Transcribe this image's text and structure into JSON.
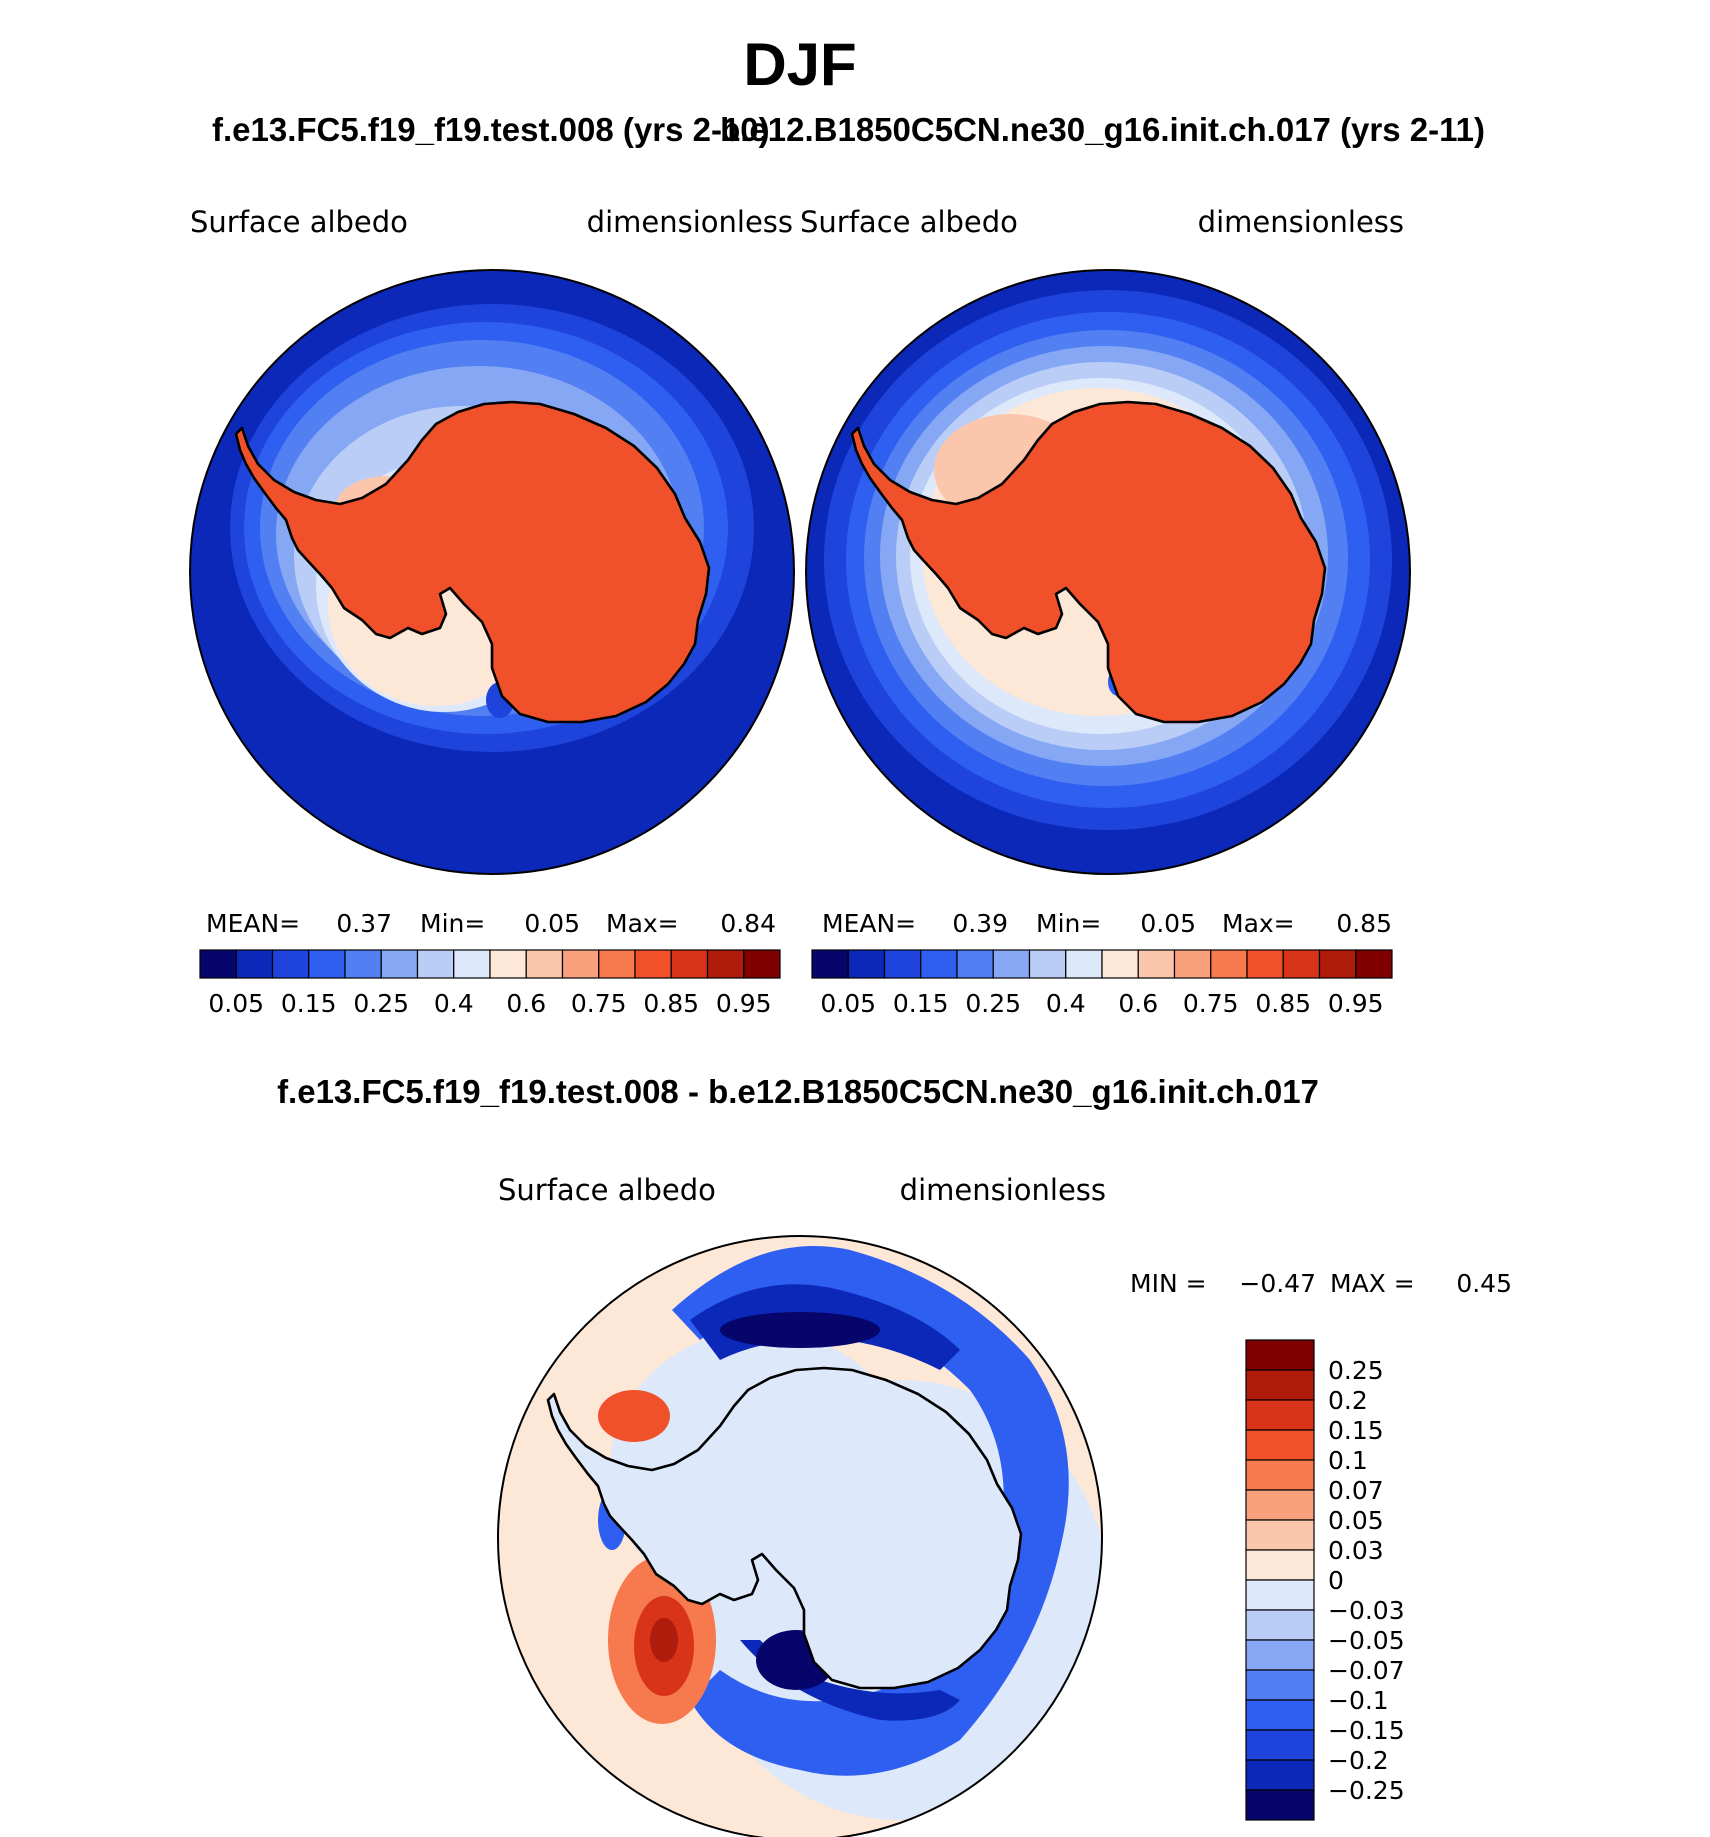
{
  "page": {
    "season": "DJF",
    "case1_title": "f.e13.FC5.f19_f19.test.008 (yrs 2-10)",
    "case2_title": "b.e12.B1850C5CN.ne30_g16.init.ch.017 (yrs 2-11)",
    "diff_title": "f.e13.FC5.f19_f19.test.008 - b.e12.B1850C5CN.ne30_g16.init.ch.017"
  },
  "chart_data": [
    {
      "type": "heatmap",
      "projection": "south-polar-stereographic",
      "title": "f.e13.FC5.f19_f19.test.008 (yrs 2-10)",
      "left_label": "Surface albedo",
      "right_label": "dimensionless",
      "stats": {
        "mean_label": "MEAN=",
        "mean": "0.37",
        "min_label": "Min=",
        "min": "0.05",
        "max_label": "Max=",
        "max": "0.84"
      },
      "colorbar": {
        "orientation": "horizontal",
        "levels": [
          "0.05",
          "0.1",
          "0.15",
          "0.2",
          "0.25",
          "0.3",
          "0.4",
          "0.5",
          "0.6",
          "0.7",
          "0.75",
          "0.8",
          "0.85",
          "0.9",
          "0.95"
        ],
        "labels": [
          "0.05",
          "0.15",
          "0.25",
          "0.4",
          "0.6",
          "0.75",
          "0.85",
          "0.95"
        ],
        "colors": [
          "#05056b",
          "#0b28b8",
          "#1e44dc",
          "#2f5ff0",
          "#527ff2",
          "#86a8f4",
          "#b9cdf7",
          "#dde8fa",
          "#fde7d7",
          "#fbc6ab",
          "#f9a07c",
          "#f67a4e",
          "#f0512a",
          "#d9331a",
          "#b01c0c",
          "#800000"
        ]
      },
      "fields": {
        "ocean": "#0b28b8",
        "ice_sheet": "#f0512a"
      }
    },
    {
      "type": "heatmap",
      "projection": "south-polar-stereographic",
      "title": "b.e12.B1850C5CN.ne30_g16.init.ch.017 (yrs 2-11)",
      "left_label": "Surface albedo",
      "right_label": "dimensionless",
      "stats": {
        "mean_label": "MEAN=",
        "mean": "0.39",
        "min_label": "Min=",
        "min": "0.05",
        "max_label": "Max=",
        "max": "0.85"
      },
      "colorbar": {
        "orientation": "horizontal",
        "levels": [
          "0.05",
          "0.1",
          "0.15",
          "0.2",
          "0.25",
          "0.3",
          "0.4",
          "0.5",
          "0.6",
          "0.7",
          "0.75",
          "0.8",
          "0.85",
          "0.9",
          "0.95"
        ],
        "labels": [
          "0.05",
          "0.15",
          "0.25",
          "0.4",
          "0.6",
          "0.75",
          "0.85",
          "0.95"
        ],
        "colors": [
          "#05056b",
          "#0b28b8",
          "#1e44dc",
          "#2f5ff0",
          "#527ff2",
          "#86a8f4",
          "#b9cdf7",
          "#dde8fa",
          "#fde7d7",
          "#fbc6ab",
          "#f9a07c",
          "#f67a4e",
          "#f0512a",
          "#d9331a",
          "#b01c0c",
          "#800000"
        ]
      },
      "fields": {
        "ocean": "#0b28b8",
        "ice_sheet": "#f0512a"
      }
    },
    {
      "type": "heatmap",
      "projection": "south-polar-stereographic",
      "title": "f.e13.FC5.f19_f19.test.008 - b.e12.B1850C5CN.ne30_g16.init.ch.017",
      "left_label": "Surface albedo",
      "right_label": "dimensionless",
      "stats": {
        "min_label": "MIN =",
        "min": "−0.47",
        "max_label": "MAX =",
        "max": "0.45"
      },
      "colorbar": {
        "orientation": "vertical",
        "labels": [
          "0.25",
          "0.2",
          "0.15",
          "0.1",
          "0.07",
          "0.05",
          "0.03",
          "0",
          "−0.03",
          "−0.05",
          "−0.07",
          "−0.1",
          "−0.15",
          "−0.2",
          "−0.25"
        ],
        "colors": [
          "#800000",
          "#b01c0c",
          "#d9331a",
          "#f0512a",
          "#f67a4e",
          "#f9a07c",
          "#fbc6ab",
          "#fde7d7",
          "#dde8fa",
          "#b9cdf7",
          "#86a8f4",
          "#527ff2",
          "#2f5ff0",
          "#1e44dc",
          "#0b28b8",
          "#05056b"
        ]
      },
      "fields": {
        "background": "#fde7d7",
        "ice_sheet": "#dde8fa"
      }
    }
  ]
}
